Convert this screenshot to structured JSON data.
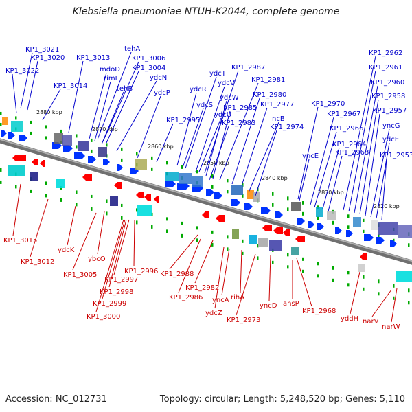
{
  "title": "Klebsiella pneumoniae NTUH-K2044, complete genome",
  "footer": {
    "accession": "Accession: NC_012731",
    "summary": "Topology: circular; Length: 5,248,520 bp; Genes: 5,110"
  },
  "colors": {
    "forward_gene": "#0033ff",
    "reverse_gene": "#ff0000",
    "backbone": "#888888",
    "forward_label": "#0000cc",
    "reverse_label": "#cc0000",
    "tick": "#00aa00"
  },
  "scale_labels": [
    "2880 kbp",
    "2870 kbp",
    "2860 kbp",
    "2850 kbp",
    "2840 kbp",
    "2830 kbp",
    "2820 kbp"
  ],
  "top_labels": [
    "KP1_3021",
    "KP1_3020",
    "KP1_3022",
    "KP1_3013",
    "tehA",
    "KP1_3006",
    "mdoD",
    "KP1_3004",
    "rimL",
    "ydcN",
    "KP1_3014",
    "tehB",
    "ydcP",
    "ydcT",
    "KP1_2987",
    "ydcV",
    "KP1_2981",
    "ydcR",
    "ydcW",
    "KP1_2980",
    "ydcS",
    "KP1_2985",
    "KP1_2977",
    "ydcU",
    "ncB",
    "KP1_2995",
    "KP1_2983",
    "KP1_2974",
    "KP1_2970",
    "KP1_2967",
    "KP1_2966",
    "yncE",
    "KP1_2964",
    "KP1_2963",
    "KP1_2962",
    "KP1_2961",
    "KP1_2960",
    "KP1_2958",
    "KP1_2957",
    "yncG",
    "ydcE",
    "KP1_2953"
  ],
  "bottom_labels": [
    "KP1_3015",
    "KP1_3012",
    "ydcK",
    "ybcO",
    "KP1_3005",
    "KP1_2996",
    "KP1_2997",
    "KP1_2998",
    "KP1_2999",
    "KP1_3000",
    "KP1_2988",
    "KP1_2986",
    "KP1_2982",
    "ydcZ",
    "yncA",
    "rihA",
    "KP1_2973",
    "yncD",
    "ansP",
    "KP1_2968",
    "yddH",
    "narV",
    "narW"
  ]
}
